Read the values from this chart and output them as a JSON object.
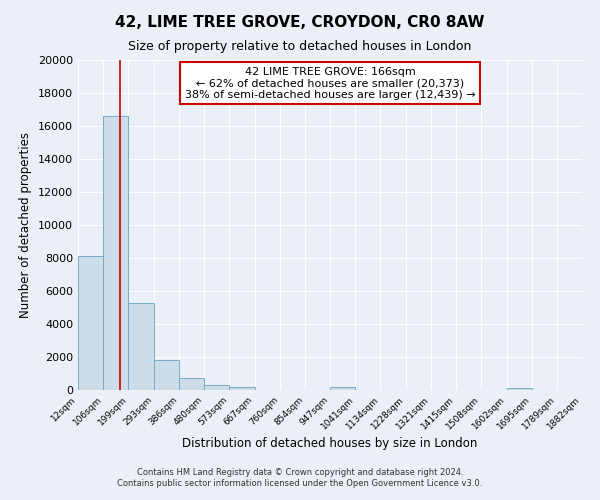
{
  "title": "42, LIME TREE GROVE, CROYDON, CR0 8AW",
  "subtitle": "Size of property relative to detached houses in London",
  "xlabel": "Distribution of detached houses by size in London",
  "ylabel": "Number of detached properties",
  "bar_color": "#ccdce8",
  "bar_edge_color": "#7aaac8",
  "background_color": "#eaf0f6",
  "grid_color": "#ffffff",
  "property_line_x": 166,
  "property_line_color": "#cc0000",
  "annotation_text": "42 LIME TREE GROVE: 166sqm\n← 62% of detached houses are smaller (20,373)\n38% of semi-detached houses are larger (12,439) →",
  "annotation_box_color": "#ffffff",
  "annotation_box_edge_color": "#cc0000",
  "bin_edges": [
    12,
    106,
    199,
    293,
    386,
    480,
    573,
    667,
    760,
    854,
    947,
    1041,
    1134,
    1228,
    1321,
    1415,
    1508,
    1602,
    1695,
    1789,
    1882
  ],
  "bin_counts": [
    8100,
    16600,
    5300,
    1800,
    700,
    300,
    200,
    0,
    0,
    0,
    200,
    0,
    0,
    0,
    0,
    0,
    0,
    150,
    0,
    0
  ],
  "ylim": [
    0,
    20000
  ],
  "yticks": [
    0,
    2000,
    4000,
    6000,
    8000,
    10000,
    12000,
    14000,
    16000,
    18000,
    20000
  ],
  "footer_line1": "Contains HM Land Registry data © Crown copyright and database right 2024.",
  "footer_line2": "Contains public sector information licensed under the Open Government Licence v3.0."
}
